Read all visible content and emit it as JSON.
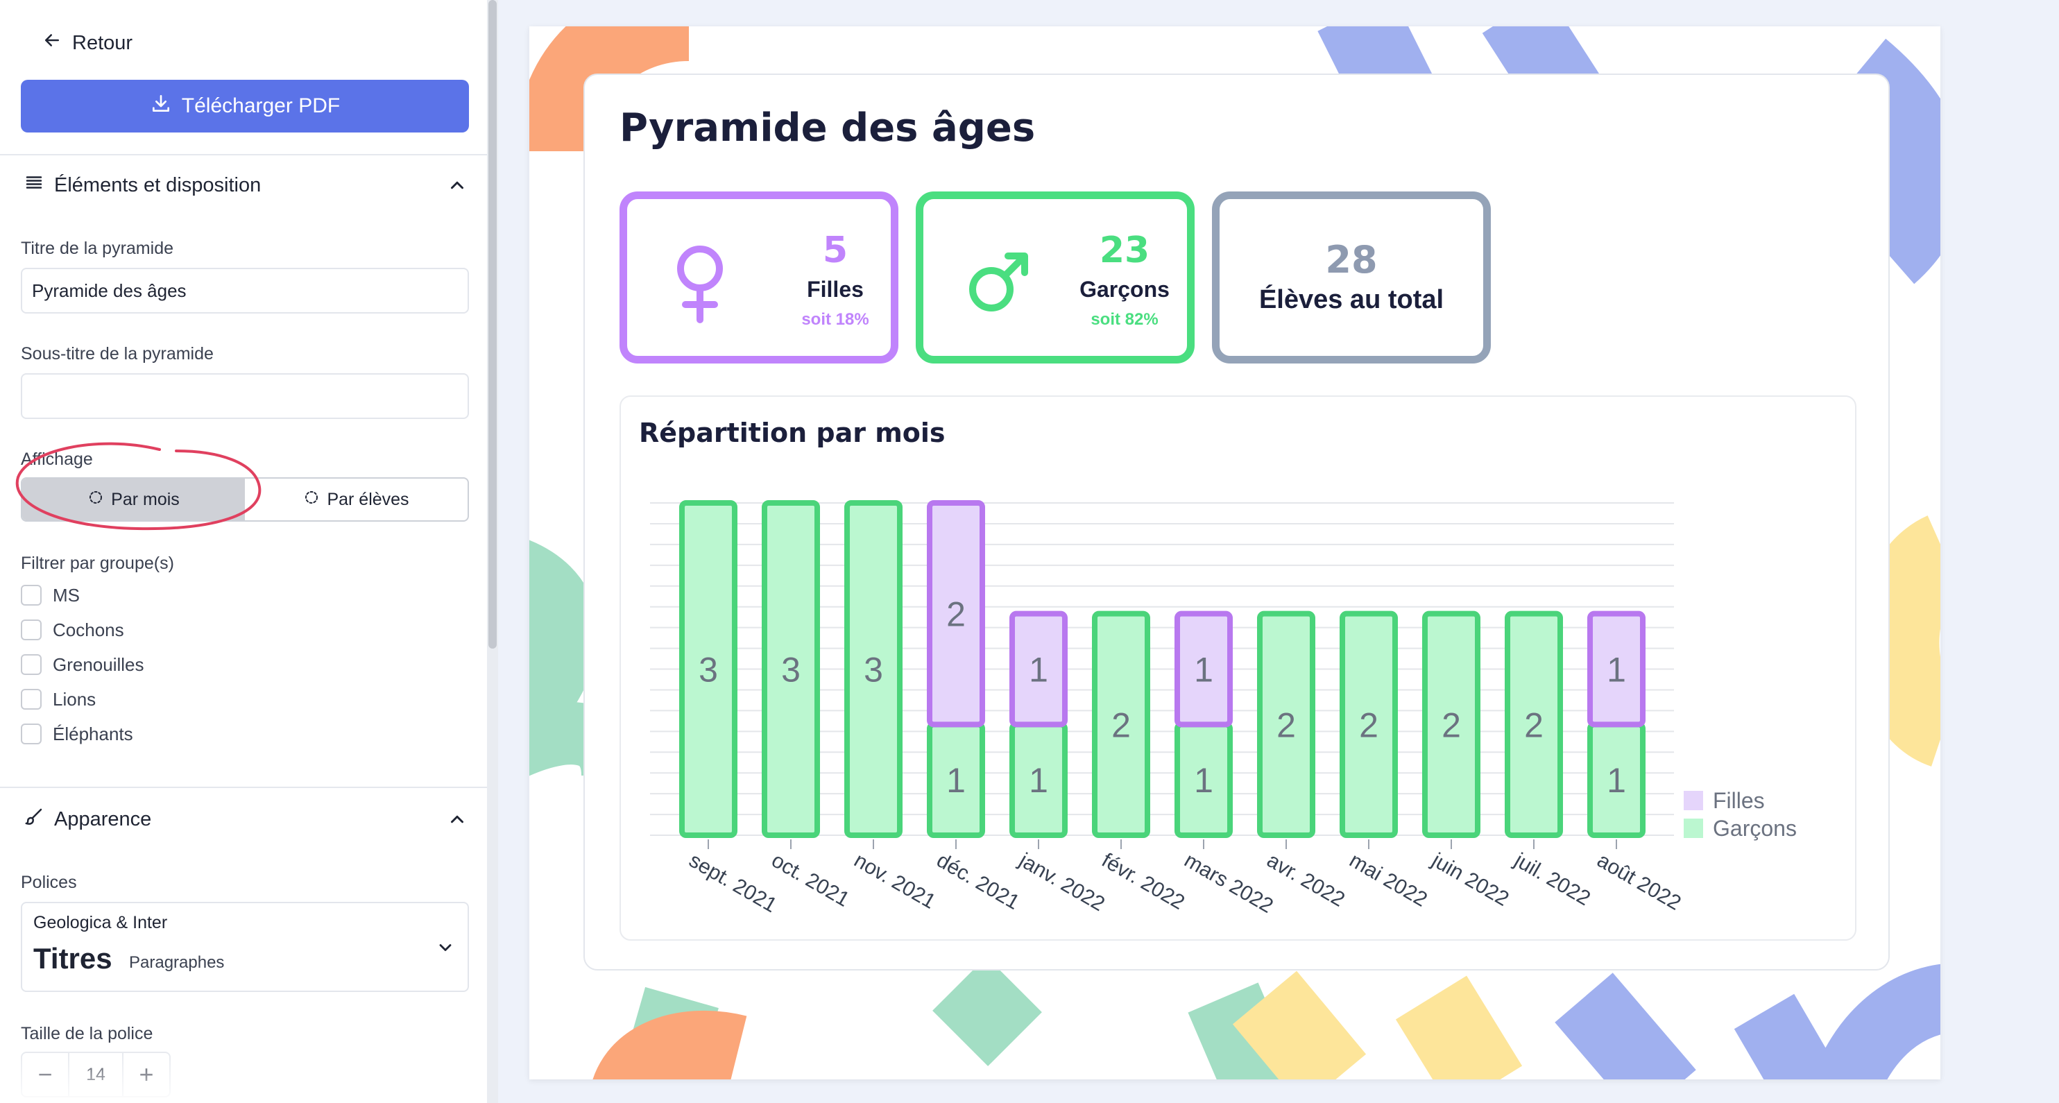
{
  "sidebar": {
    "back_label": "Retour",
    "download_label": "Télécharger PDF",
    "layout_section": {
      "title": "Éléments et disposition",
      "title_label": "Titre de la pyramide",
      "title_value": "Pyramide des âges",
      "subtitle_label": "Sous-titre de la pyramide",
      "subtitle_value": "",
      "display_label": "Affichage",
      "display_options": [
        "Par mois",
        "Par élèves"
      ],
      "display_selected": "Par mois",
      "filter_label": "Filtrer par groupe(s)",
      "groups": [
        "MS",
        "Cochons",
        "Grenouilles",
        "Lions",
        "Éléphants"
      ]
    },
    "appearance_section": {
      "title": "Apparence",
      "fonts_label": "Polices",
      "font_name": "Geologica & Inter",
      "font_titles": "Titres",
      "font_paragraphs": "Paragraphes",
      "font_size_label": "Taille de la police",
      "font_size_value": "14",
      "minus": "−",
      "plus": "+"
    }
  },
  "preview": {
    "title": "Pyramide des âges",
    "girls": {
      "count": "5",
      "label": "Filles",
      "pct": "soit 18%"
    },
    "boys": {
      "count": "23",
      "label": "Garçons",
      "pct": "soit 82%"
    },
    "total": {
      "count": "28",
      "label": "Élèves au total"
    },
    "chart_title": "Répartition par mois"
  },
  "colors": {
    "accent": "#5b73e8",
    "girls_border": "#c084fc",
    "girls_fill": "#e5d5fb",
    "girls_stroke": "#b878ef",
    "boys_border": "#4ade80",
    "boys_fill": "#bbf7d0",
    "boys_stroke": "#4ad47a",
    "total_border": "#94a3b8",
    "annotation": "#e0405f"
  },
  "icons": {
    "back": "arrow-left-icon",
    "download": "download-icon",
    "layout": "list-icon",
    "appearance": "brush-icon",
    "girls": "female-symbol-icon",
    "boys": "male-symbol-icon"
  },
  "chart_data": {
    "type": "bar",
    "stacked": true,
    "categories": [
      "sept. 2021",
      "oct. 2021",
      "nov. 2021",
      "déc. 2021",
      "janv. 2022",
      "févr. 2022",
      "mars 2022",
      "avr. 2022",
      "mai 2022",
      "juin 2022",
      "juil. 2022",
      "août 2022"
    ],
    "series": [
      {
        "name": "Garçons",
        "values": [
          3,
          3,
          3,
          1,
          1,
          2,
          1,
          2,
          2,
          2,
          2,
          1
        ],
        "color": "#bbf7d0"
      },
      {
        "name": "Filles",
        "values": [
          0,
          0,
          0,
          2,
          1,
          0,
          1,
          0,
          0,
          0,
          0,
          1
        ],
        "color": "#e5d5fb"
      }
    ],
    "ylim": [
      0,
      3
    ],
    "grid": true,
    "legend": "bottom-right"
  }
}
